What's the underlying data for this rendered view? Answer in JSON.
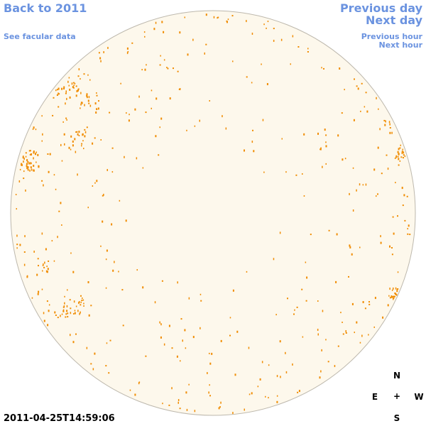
{
  "navigation": {
    "back": "Back to 2011",
    "facular": "See facular data",
    "previous_day": "Previous day",
    "next_day": "Next day",
    "previous_hour": "Previous hour",
    "next_hour": "Next hour"
  },
  "timestamp": "2011-04-25T14:59:06",
  "compass": {
    "north": "N",
    "east": "E",
    "center": "+",
    "west": "W",
    "south": "S"
  }
}
